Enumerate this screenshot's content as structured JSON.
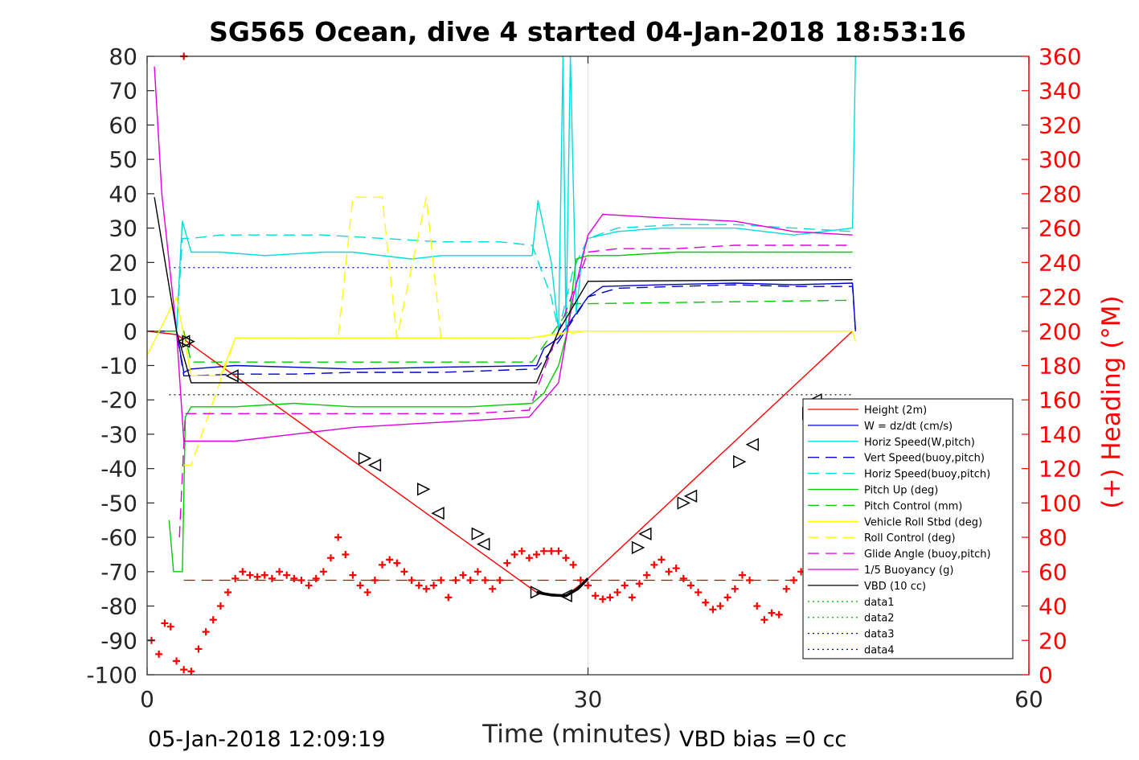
{
  "chart_data": {
    "type": "line",
    "title": "SG565 Ocean, dive 4 started 04-Jan-2018 18:53:16",
    "xlabel": "Time (minutes)",
    "ylabel_right": "(+) Heading (°M)",
    "footer_left": "05-Jan-2018 12:09:19",
    "footer_right": "VBD bias =0 cc",
    "xlim": [
      0,
      60
    ],
    "ylim": [
      -100,
      80
    ],
    "ylim_right": [
      0,
      360
    ],
    "x_ticks": [
      "0",
      "30",
      "60"
    ],
    "y_ticks": [
      "80",
      "70",
      "60",
      "50",
      "40",
      "30",
      "20",
      "10",
      "0",
      "-10",
      "-20",
      "-30",
      "-40",
      "-50",
      "-60",
      "-70",
      "-80",
      "-90",
      "-100"
    ],
    "y_ticks_right": [
      "360",
      "340",
      "320",
      "300",
      "280",
      "260",
      "240",
      "220",
      "200",
      "180",
      "160",
      "140",
      "120",
      "100",
      "80",
      "60",
      "40",
      "20",
      "0"
    ],
    "grid": "x-only",
    "legend_position": "bottom-right",
    "series": [
      {
        "name": "Height (2m)",
        "color": "#ff0000",
        "style": "solid",
        "x": [
          0,
          2,
          2.7,
          26.5,
          28.5,
          30,
          48
        ],
        "y": [
          0,
          -1,
          -3,
          -76,
          -77,
          -72,
          0
        ]
      },
      {
        "name": "W = dz/dt (cm/s)",
        "color": "#0000cc",
        "style": "solid",
        "x": [
          0,
          2,
          2.5,
          3,
          6,
          10,
          14,
          20,
          24,
          26.5,
          27,
          28,
          29,
          30,
          31,
          35,
          40,
          44,
          48,
          48.2
        ],
        "y": [
          0,
          0,
          -12,
          -11,
          -10,
          -10.5,
          -11,
          -10.5,
          -10.2,
          -10,
          -5,
          -2,
          4,
          10,
          13,
          13.5,
          14,
          13.5,
          14,
          0
        ]
      },
      {
        "name": "Horiz Speed(W,pitch)",
        "color": "#00dddd",
        "style": "solid",
        "x": [
          2,
          2.3,
          2.4,
          3,
          5,
          8,
          12,
          14,
          18,
          20,
          24,
          26.2,
          26.6,
          27.5,
          28,
          28.3,
          28.5,
          28.8,
          29.2,
          29.6,
          30,
          32,
          35,
          40,
          44,
          48,
          48.2
        ],
        "y": [
          0,
          25,
          32,
          23,
          23,
          22,
          23,
          23,
          21,
          22,
          22,
          22,
          38,
          20,
          0,
          80,
          0,
          80,
          5,
          22,
          27,
          29,
          30,
          30,
          28,
          30,
          80
        ]
      },
      {
        "name": "Vert Speed(buoy,pitch)",
        "color": "#0000cc",
        "style": "dash",
        "x": [
          0,
          2,
          2.5,
          3,
          6,
          10,
          14,
          20,
          26.5,
          28,
          30,
          32,
          36,
          40,
          44,
          48,
          48.2
        ],
        "y": [
          0,
          0,
          -13,
          -13,
          -12.5,
          -12.5,
          -12,
          -12,
          -11,
          -3,
          10,
          12.5,
          13,
          13.5,
          13,
          13,
          0
        ]
      },
      {
        "name": "Horiz Speed(buoy,pitch)",
        "color": "#00dddd",
        "style": "dash",
        "x": [
          2,
          2.4,
          3,
          5,
          8,
          12,
          16,
          20,
          24,
          26.2,
          27.5,
          28,
          29,
          30,
          32,
          36,
          40,
          44,
          48
        ],
        "y": [
          0,
          27,
          27,
          28,
          28,
          28,
          27,
          26,
          26,
          25,
          10,
          0,
          18,
          27,
          30,
          31,
          31,
          30,
          29
        ]
      },
      {
        "name": "Pitch Up (deg)",
        "color": "#00cc00",
        "style": "solid",
        "x": [
          1.5,
          1.8,
          2.4,
          2.6,
          3,
          6,
          10,
          14,
          18,
          22,
          26.2,
          27,
          28,
          28.6,
          29.2,
          30,
          32,
          36,
          40,
          44,
          48
        ],
        "y": [
          -55,
          -70,
          -70,
          -25,
          -22,
          -22,
          -21,
          -22,
          -22,
          -22,
          -21,
          -18,
          -10,
          0,
          21,
          22,
          22,
          23,
          23,
          23,
          23
        ]
      },
      {
        "name": "Pitch Control (mm)",
        "color": "#00cc00",
        "style": "dash",
        "x": [
          0,
          2.5,
          3,
          26.2,
          29,
          30,
          48
        ],
        "y": [
          0,
          0,
          -9,
          -9,
          8,
          8,
          9
        ]
      },
      {
        "name": "Vehicle Roll Stbd (deg)",
        "color": "#ffff00",
        "style": "solid",
        "x": [
          0,
          2,
          3,
          5,
          6,
          26,
          29,
          48,
          48.2
        ],
        "y": [
          -7,
          10,
          -13,
          -13,
          -2,
          -2,
          0,
          0,
          -3
        ]
      },
      {
        "name": "Roll Control (deg)",
        "color": "#ffff00",
        "style": "dash",
        "x": [
          2.5,
          3,
          6,
          13,
          14,
          16,
          17,
          19,
          20,
          22,
          26,
          30,
          48
        ],
        "y": [
          -39,
          -39,
          -2,
          -2,
          39,
          39,
          -2,
          39,
          -2,
          -2,
          -2,
          0,
          0
        ]
      },
      {
        "name": "Glide Angle (buoy,pitch)",
        "color": "#dd00dd",
        "style": "dash",
        "x": [
          2.2,
          2.6,
          3,
          6,
          10,
          14,
          18,
          22,
          26,
          28,
          30,
          32,
          36,
          40,
          44,
          48
        ],
        "y": [
          -60,
          -24,
          -24,
          -24,
          -24,
          -24,
          -24,
          -24,
          -23,
          0,
          23,
          24,
          24,
          25,
          25,
          25
        ]
      },
      {
        "name": "1/5 Buoyancy (g)",
        "color": "#dd00dd",
        "style": "solid",
        "x": [
          0.5,
          1,
          2,
          2.5,
          3,
          6,
          10,
          14,
          18,
          22,
          26,
          28,
          29,
          30,
          31,
          35,
          40,
          44,
          48
        ],
        "y": [
          77,
          40,
          0,
          -32,
          -32,
          -32,
          -30,
          -28,
          -27,
          -26,
          -25,
          -15,
          10,
          28,
          34,
          33,
          32,
          29,
          28
        ]
      },
      {
        "name": "VBD (10 cc)",
        "color": "#000000",
        "style": "solid",
        "x": [
          0.5,
          2,
          3,
          10,
          20,
          26.5,
          28,
          30,
          40,
          48
        ],
        "y": [
          39,
          0,
          -15,
          -15,
          -15,
          -15,
          0,
          14.5,
          14.8,
          15
        ]
      },
      {
        "name": "data1",
        "color": "#00cc00",
        "style": "dot",
        "x": [],
        "y": []
      },
      {
        "name": "data2",
        "color": "#00cc00",
        "style": "dot",
        "x": [],
        "y": []
      },
      {
        "name": "data3",
        "color": "#0000cc",
        "style": "dot",
        "x": [],
        "y": []
      },
      {
        "name": "data4",
        "color": "#0000cc",
        "style": "dot",
        "x": [],
        "y": []
      }
    ],
    "reference_lines": [
      {
        "y": 18.5,
        "color": "#0000cc",
        "style": "dot"
      },
      {
        "y": -18.5,
        "color": "#000000",
        "style": "dot"
      },
      {
        "y": -72.5,
        "color": "#cc0000",
        "style": "dash"
      }
    ],
    "heading": {
      "color": "#ff0000",
      "marker": "+",
      "axis": "right",
      "x": [
        0.3,
        0.8,
        1.2,
        1.6,
        2.0,
        2.5,
        3.0,
        3.5,
        4.0,
        4.5,
        5.0,
        5.5,
        6.0,
        6.5,
        7.0,
        7.5,
        8.0,
        8.5,
        9.0,
        9.5,
        10.0,
        10.5,
        11.0,
        11.5,
        12.0,
        12.5,
        13.0,
        13.5,
        14.0,
        14.5,
        15.0,
        15.5,
        16.0,
        16.5,
        17.0,
        17.5,
        18.0,
        18.5,
        19.0,
        19.5,
        20.0,
        20.5,
        21.0,
        21.5,
        22.0,
        22.5,
        23.0,
        23.5,
        24.0,
        24.5,
        25.0,
        25.5,
        26.0,
        26.5,
        27.0,
        27.5,
        28.0,
        28.5,
        29.0,
        29.5,
        30.0,
        30.5,
        31.0,
        31.5,
        32.0,
        32.5,
        33.0,
        33.5,
        34.0,
        34.5,
        35.0,
        35.5,
        36.0,
        36.5,
        37.0,
        37.5,
        38.0,
        38.5,
        39.0,
        39.5,
        40.0,
        40.5,
        41.0,
        41.5,
        42.0,
        42.5,
        43.0,
        43.5,
        44.0,
        44.5,
        45.0,
        45.5,
        46.0,
        46.5,
        47.0,
        47.5,
        48.0,
        2.5
      ],
      "y": [
        20,
        12,
        30,
        28,
        8,
        3,
        2,
        15,
        25,
        32,
        40,
        48,
        56,
        60,
        58,
        57,
        58,
        56,
        60,
        58,
        56,
        55,
        52,
        56,
        60,
        68,
        80,
        70,
        58,
        52,
        48,
        55,
        64,
        67,
        65,
        60,
        55,
        52,
        50,
        52,
        55,
        45,
        55,
        58,
        55,
        60,
        55,
        50,
        55,
        65,
        70,
        72,
        68,
        70,
        72,
        72,
        72,
        68,
        64,
        55,
        52,
        46,
        44,
        45,
        48,
        52,
        45,
        53,
        58,
        64,
        67,
        60,
        62,
        56,
        52,
        48,
        42,
        38,
        40,
        45,
        50,
        58,
        55,
        40,
        32,
        36,
        35,
        50,
        55,
        60,
        62,
        60,
        60,
        62,
        58,
        55,
        60,
        360
      ]
    },
    "markers": {
      "marker": "triangle",
      "color": "#000000",
      "x": [
        2.5,
        2.8,
        5.8,
        14.8,
        15.5,
        18.8,
        19.8,
        22.5,
        22.9,
        26.5,
        28.5,
        33.4,
        33.9,
        36.5,
        37.0,
        40.3,
        41.2,
        45.0,
        45.5
      ],
      "y": [
        -3,
        -3,
        -13,
        -37,
        -39,
        -46,
        -53,
        -59,
        -62,
        -76,
        -77,
        -63,
        -59,
        -50,
        -48,
        -38,
        -33,
        -24,
        -20
      ]
    }
  },
  "legend": {
    "items": [
      {
        "label": "Height (2m)"
      },
      {
        "label": "W = dz/dt (cm/s)"
      },
      {
        "label": "Horiz Speed(W,pitch)"
      },
      {
        "label": "Vert Speed(buoy,pitch)"
      },
      {
        "label": "Horiz Speed(buoy,pitch)"
      },
      {
        "label": "Pitch Up (deg)"
      },
      {
        "label": "Pitch Control (mm)"
      },
      {
        "label": "Vehicle Roll Stbd (deg)"
      },
      {
        "label": "Roll Control (deg)"
      },
      {
        "label": "Glide Angle (buoy,pitch)"
      },
      {
        "label": "1/5 Buoyancy (g)"
      },
      {
        "label": "VBD (10 cc)"
      },
      {
        "label": "data1"
      },
      {
        "label": "data2"
      },
      {
        "label": "data3"
      },
      {
        "label": "data4"
      }
    ]
  }
}
